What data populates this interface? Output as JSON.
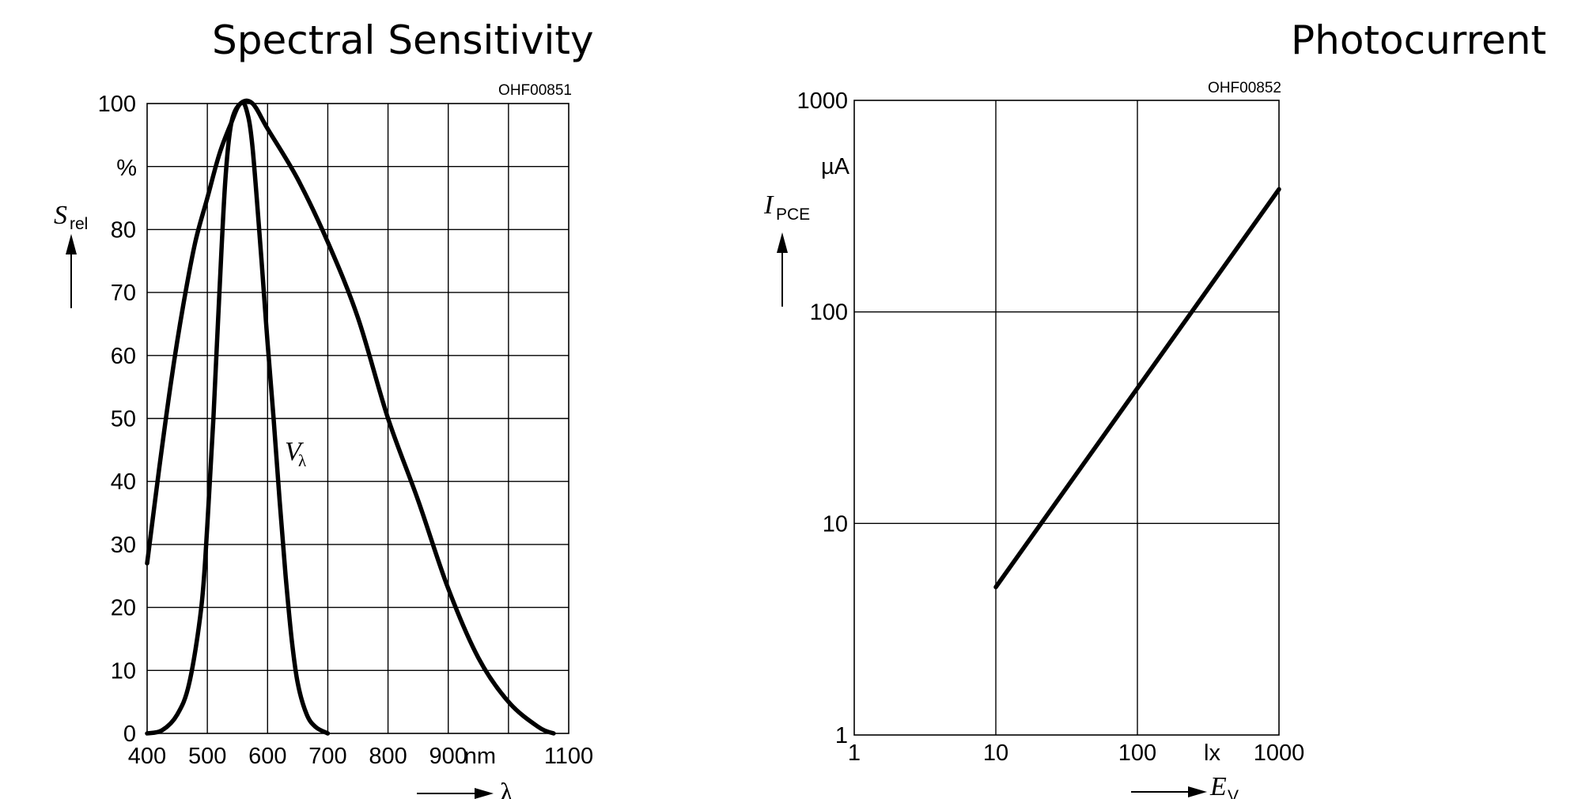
{
  "chart_data": [
    {
      "type": "line",
      "title": "Spectral Sensitivity",
      "code": "OHF00851",
      "ylabel": {
        "symbol": "S",
        "subscript": "rel"
      },
      "yunit": "%",
      "xlabel": "λ",
      "xunit": "nm",
      "xlim": [
        400,
        1100
      ],
      "ylim": [
        0,
        100
      ],
      "grid": true,
      "x_ticks": [
        "400",
        "500",
        "600",
        "700",
        "800",
        "900",
        "",
        "1100"
      ],
      "y_ticks": [
        "0",
        "10",
        "20",
        "30",
        "40",
        "50",
        "60",
        "70",
        "80",
        "",
        "100"
      ],
      "annotation": {
        "symbol": "V",
        "subscript": "λ"
      },
      "series": [
        {
          "points": [
            [
              400,
              27
            ],
            [
              420,
              42
            ],
            [
              440,
              56
            ],
            [
              460,
              68
            ],
            [
              480,
              78
            ],
            [
              500,
              85
            ],
            [
              520,
              92
            ],
            [
              540,
              97
            ],
            [
              555,
              100
            ],
            [
              575,
              100
            ],
            [
              600,
              96
            ],
            [
              650,
              88
            ],
            [
              700,
              78
            ],
            [
              750,
              66
            ],
            [
              800,
              50
            ],
            [
              850,
              37
            ],
            [
              900,
              23
            ],
            [
              950,
              12
            ],
            [
              1000,
              5
            ],
            [
              1050,
              1
            ],
            [
              1075,
              0
            ]
          ]
        },
        {
          "points": [
            [
              400,
              0
            ],
            [
              425,
              0.5
            ],
            [
              450,
              3
            ],
            [
              470,
              8
            ],
            [
              490,
              20
            ],
            [
              500,
              33
            ],
            [
              510,
              50
            ],
            [
              520,
              70
            ],
            [
              530,
              88
            ],
            [
              540,
              97
            ],
            [
              555,
              100
            ],
            [
              565,
              99
            ],
            [
              575,
              93
            ],
            [
              590,
              75
            ],
            [
              600,
              62
            ],
            [
              610,
              50
            ],
            [
              620,
              37
            ],
            [
              630,
              25
            ],
            [
              640,
              15
            ],
            [
              650,
              8
            ],
            [
              665,
              3
            ],
            [
              680,
              1
            ],
            [
              700,
              0
            ]
          ]
        }
      ]
    },
    {
      "type": "line",
      "title": "Photocurrent",
      "code": "OHF00852",
      "xscale": "log",
      "yscale": "log",
      "ylabel": {
        "symbol": "I",
        "subscript": "PCE"
      },
      "yunit": "µA",
      "xlabel": {
        "symbol": "E",
        "subscript": "V"
      },
      "xunit": "lx",
      "xlim": [
        1,
        1000
      ],
      "ylim": [
        1,
        1000
      ],
      "grid": true,
      "x_ticks": [
        "1",
        "10",
        "100",
        "1000"
      ],
      "y_ticks": [
        "1",
        "10",
        "100",
        "1000"
      ],
      "series": [
        {
          "points": [
            [
              10,
              5
            ],
            [
              1000,
              380
            ]
          ]
        }
      ]
    }
  ]
}
